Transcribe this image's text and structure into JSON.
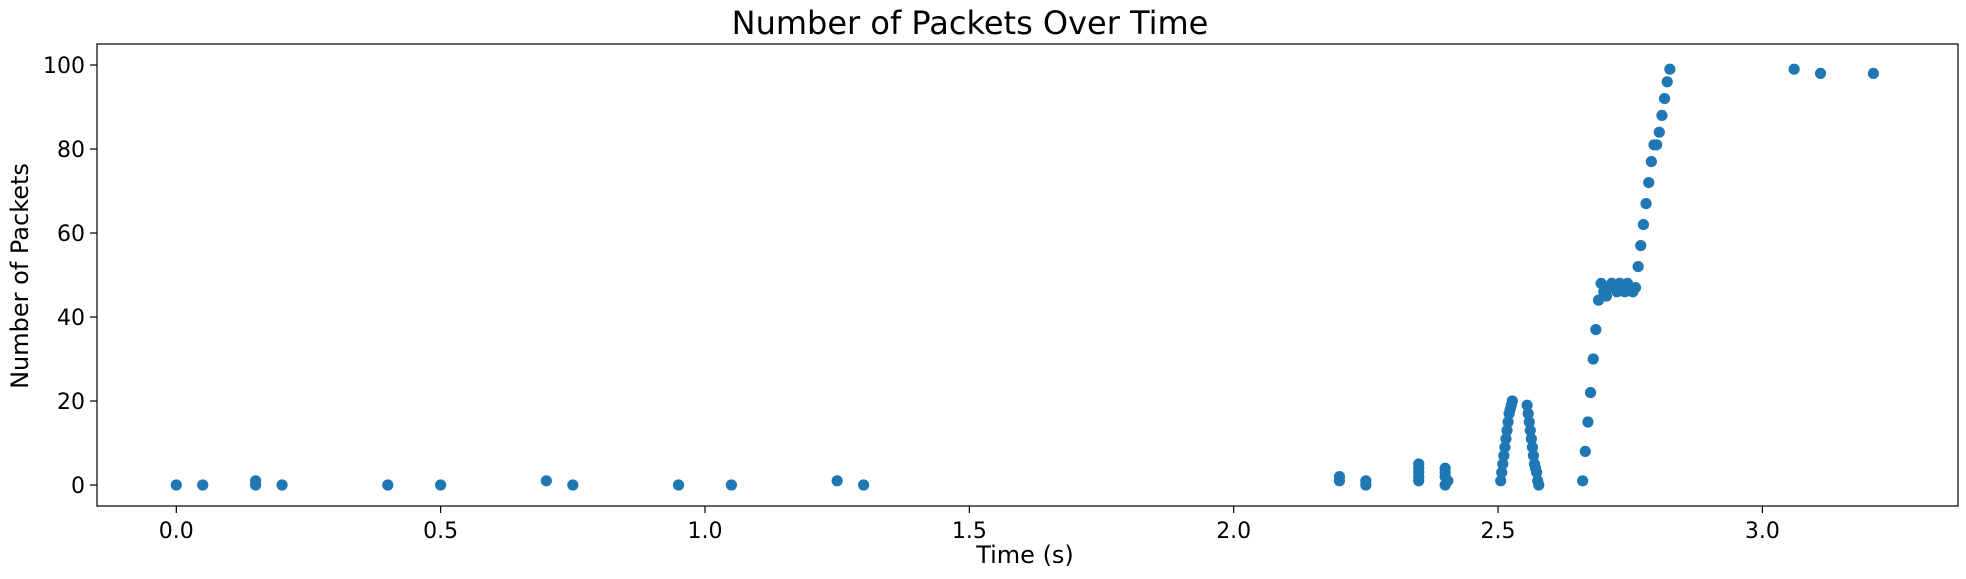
{
  "chart_data": {
    "type": "scatter",
    "title": "Number of Packets Over Time",
    "xlabel": "Time (s)",
    "ylabel": "Number of Packets",
    "xlim": [
      -0.15,
      3.37
    ],
    "ylim": [
      -5,
      105
    ],
    "xticks": [
      "0.0",
      "0.5",
      "1.0",
      "1.5",
      "2.0",
      "2.5",
      "3.0"
    ],
    "yticks": [
      "0",
      "20",
      "40",
      "60",
      "80",
      "100"
    ],
    "grid": false,
    "color": "#1f77b4",
    "series": [
      {
        "x": [
          0.0,
          0.05,
          0.15,
          0.15,
          0.2,
          0.4,
          0.5,
          0.7,
          0.75,
          0.95,
          1.05,
          1.25,
          1.3,
          2.2,
          2.2,
          2.25,
          2.25,
          2.35,
          2.35,
          2.35,
          2.35,
          2.35,
          2.4,
          2.4,
          2.4,
          2.4,
          2.405,
          2.505,
          2.507,
          2.509,
          2.511,
          2.513,
          2.515,
          2.517,
          2.519,
          2.521,
          2.523,
          2.525,
          2.527,
          2.555,
          2.557,
          2.559,
          2.561,
          2.563,
          2.565,
          2.567,
          2.569,
          2.571,
          2.573,
          2.575,
          2.577,
          2.66,
          2.665,
          2.67,
          2.675,
          2.68,
          2.685,
          2.69,
          2.695,
          2.7,
          2.705,
          2.71,
          2.715,
          2.72,
          2.725,
          2.73,
          2.735,
          2.74,
          2.745,
          2.75,
          2.755,
          2.76,
          2.765,
          2.77,
          2.775,
          2.78,
          2.785,
          2.79,
          2.795,
          2.8,
          2.805,
          2.81,
          2.815,
          2.82,
          2.825,
          3.06,
          3.11,
          3.21
        ],
        "y": [
          0,
          0,
          0,
          1,
          0,
          0,
          0,
          1,
          0,
          0,
          0,
          1,
          0,
          1,
          2,
          0,
          1,
          1,
          2,
          3,
          4,
          5,
          0,
          2,
          3,
          4,
          1,
          1,
          3,
          5,
          7,
          9,
          11,
          13,
          15,
          17,
          18,
          19,
          20,
          19,
          17,
          15,
          13,
          11,
          9,
          7,
          5,
          4,
          3,
          1,
          0,
          1,
          8,
          15,
          22,
          30,
          37,
          44,
          48,
          46,
          45,
          47,
          48,
          47,
          46,
          48,
          47,
          46,
          48,
          47,
          46,
          47,
          52,
          57,
          62,
          67,
          72,
          77,
          81,
          81,
          84,
          88,
          92,
          96,
          99,
          99,
          98,
          98
        ]
      }
    ]
  }
}
